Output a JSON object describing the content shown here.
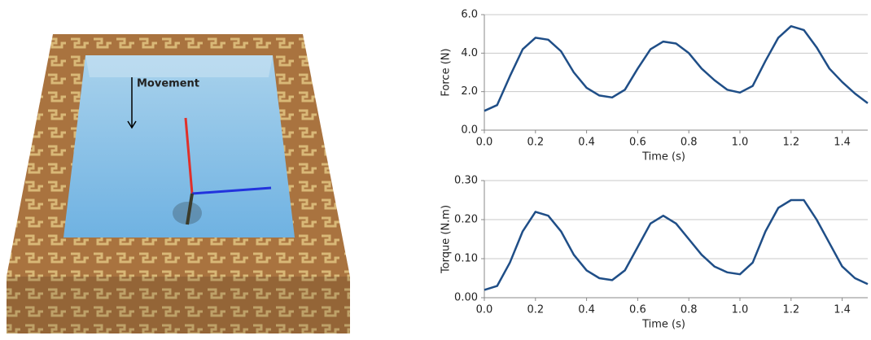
{
  "scene": {
    "annotation": "Movement"
  },
  "chart_data": [
    {
      "type": "line",
      "xlabel": "Time (s)",
      "ylabel": "Force (N)",
      "color": "#1f4e87",
      "grid": true,
      "x": [
        0,
        0.05,
        0.1,
        0.15,
        0.2,
        0.25,
        0.3,
        0.35,
        0.4,
        0.45,
        0.5,
        0.55,
        0.6,
        0.65,
        0.7,
        0.75,
        0.8,
        0.85,
        0.9,
        0.95,
        1.0,
        1.05,
        1.1,
        1.15,
        1.2,
        1.25,
        1.3,
        1.35,
        1.4,
        1.45,
        1.5
      ],
      "values": [
        1.0,
        1.3,
        2.8,
        4.2,
        4.8,
        4.7,
        4.1,
        3.0,
        2.2,
        1.8,
        1.7,
        2.1,
        3.2,
        4.2,
        4.6,
        4.5,
        4.0,
        3.2,
        2.6,
        2.1,
        1.95,
        2.3,
        3.6,
        4.8,
        5.4,
        5.2,
        4.3,
        3.2,
        2.5,
        1.9,
        1.4
      ],
      "xlim": [
        0,
        1.5
      ],
      "xticks": [
        {
          "value": 0,
          "label": "0.0"
        },
        0.2,
        0.4,
        0.6,
        0.8,
        {
          "value": 1,
          "label": "1.0"
        },
        1.2,
        1.4
      ],
      "ylim": [
        0,
        6
      ],
      "yticks": [
        {
          "value": 0,
          "label": "0.0"
        },
        {
          "value": 2,
          "label": "2.0"
        },
        {
          "value": 4,
          "label": "4.0"
        },
        {
          "value": 6,
          "label": "6.0"
        }
      ]
    },
    {
      "type": "line",
      "xlabel": "Time (s)",
      "ylabel": "Torque (N.m)",
      "color": "#1f4e87",
      "grid": true,
      "x": [
        0,
        0.05,
        0.1,
        0.15,
        0.2,
        0.25,
        0.3,
        0.35,
        0.4,
        0.45,
        0.5,
        0.55,
        0.6,
        0.65,
        0.7,
        0.75,
        0.8,
        0.85,
        0.9,
        0.95,
        1.0,
        1.05,
        1.1,
        1.15,
        1.2,
        1.25,
        1.3,
        1.35,
        1.4,
        1.45,
        1.5
      ],
      "values": [
        0.02,
        0.03,
        0.09,
        0.17,
        0.22,
        0.21,
        0.17,
        0.11,
        0.07,
        0.05,
        0.045,
        0.07,
        0.13,
        0.19,
        0.21,
        0.19,
        0.15,
        0.11,
        0.08,
        0.065,
        0.06,
        0.09,
        0.17,
        0.23,
        0.25,
        0.25,
        0.2,
        0.14,
        0.08,
        0.05,
        0.035
      ],
      "xlim": [
        0,
        1.5
      ],
      "xticks": [
        {
          "value": 0,
          "label": "0.0"
        },
        0.2,
        0.4,
        0.6,
        0.8,
        {
          "value": 1,
          "label": "1.0"
        },
        1.2,
        1.4
      ],
      "ylim": [
        0,
        0.3
      ],
      "yticks": [
        {
          "value": 0,
          "label": "0.00"
        },
        {
          "value": 0.1,
          "label": "0.10"
        },
        {
          "value": 0.2,
          "label": "0.20"
        },
        {
          "value": 0.3,
          "label": "0.30"
        }
      ]
    }
  ]
}
